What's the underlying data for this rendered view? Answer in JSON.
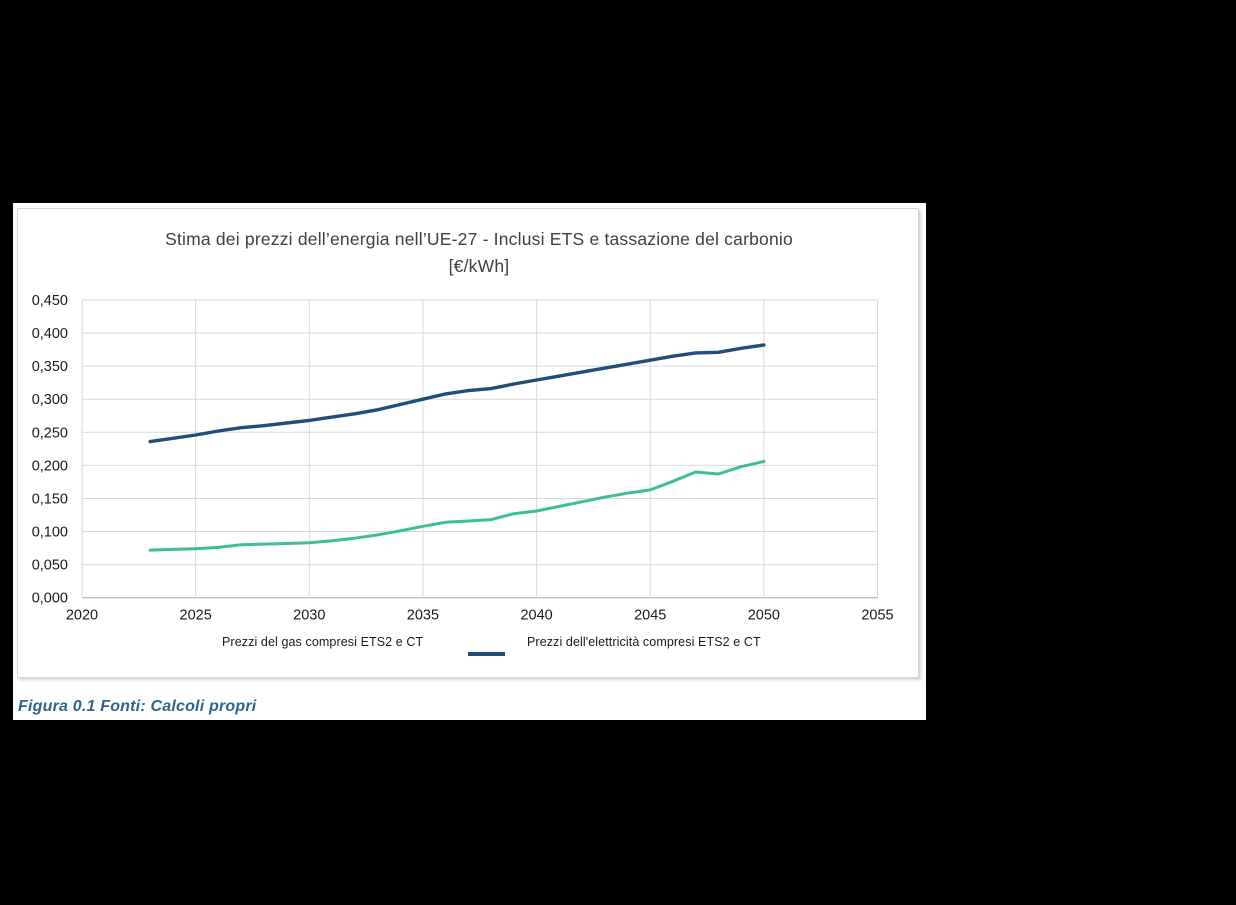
{
  "page": {
    "caption": "Figura 0.1 Fonti: Calcoli propri"
  },
  "chart": {
    "title_line1": "Stima dei prezzi dell’energia nell’UE-27 - Inclusi ETS e tassazione del carbonio",
    "title_line2": "[€/kWh]",
    "legend": [
      {
        "label": "Prezzi del gas compresi ETS2 e CT",
        "swatch_color": null
      },
      {
        "label": "Prezzi dell'elettricità compresi ETS2 e CT",
        "swatch_color": "#1F4E79"
      }
    ]
  },
  "chart_data": {
    "type": "line",
    "title": "Stima dei prezzi dell’energia nell’UE-27 - Inclusi ETS e tassazione del carbonio",
    "subtitle": "[€/kWh]",
    "xlabel": "",
    "ylabel": "",
    "xlim": [
      2020,
      2055
    ],
    "ylim": [
      0,
      0.45
    ],
    "grid": true,
    "legend_position": "bottom",
    "x_ticks": [
      2020,
      2025,
      2030,
      2035,
      2040,
      2045,
      2050,
      2055
    ],
    "y_ticks": [
      {
        "value": 0.0,
        "label": "0,000"
      },
      {
        "value": 0.05,
        "label": "0,050"
      },
      {
        "value": 0.1,
        "label": "0,100"
      },
      {
        "value": 0.15,
        "label": "0,150"
      },
      {
        "value": 0.2,
        "label": "0,200"
      },
      {
        "value": 0.25,
        "label": "0,250"
      },
      {
        "value": 0.3,
        "label": "0,300"
      },
      {
        "value": 0.35,
        "label": "0,350"
      },
      {
        "value": 0.4,
        "label": "0,400"
      },
      {
        "value": 0.45,
        "label": "0,450"
      }
    ],
    "x": [
      2023,
      2024,
      2025,
      2026,
      2027,
      2028,
      2029,
      2030,
      2031,
      2032,
      2033,
      2034,
      2035,
      2036,
      2037,
      2038,
      2039,
      2040,
      2041,
      2042,
      2043,
      2044,
      2045,
      2046,
      2047,
      2048,
      2049,
      2050
    ],
    "series": [
      {
        "name": "Prezzi del gas compresi ETS2 e CT",
        "color": "#3FBD94",
        "stroke_width": 3,
        "values": [
          0.072,
          0.073,
          0.074,
          0.076,
          0.08,
          0.081,
          0.082,
          0.083,
          0.086,
          0.09,
          0.095,
          0.101,
          0.108,
          0.114,
          0.116,
          0.118,
          0.127,
          0.131,
          0.138,
          0.145,
          0.152,
          0.158,
          0.163,
          0.176,
          0.19,
          0.187,
          0.198,
          0.206
        ]
      },
      {
        "name": "Prezzi dell'elettricità compresi ETS2 e CT",
        "color": "#1F4E79",
        "stroke_width": 3.4,
        "values": [
          0.236,
          0.241,
          0.246,
          0.252,
          0.257,
          0.26,
          0.264,
          0.268,
          0.273,
          0.278,
          0.284,
          0.292,
          0.3,
          0.308,
          0.313,
          0.316,
          0.323,
          0.329,
          0.335,
          0.341,
          0.347,
          0.353,
          0.359,
          0.365,
          0.37,
          0.371,
          0.377,
          0.382
        ]
      }
    ],
    "colors": {
      "gridline": "#D9D9D9",
      "axis_line": "#BFBFBF",
      "tick_text": "#1A1A1A"
    }
  }
}
